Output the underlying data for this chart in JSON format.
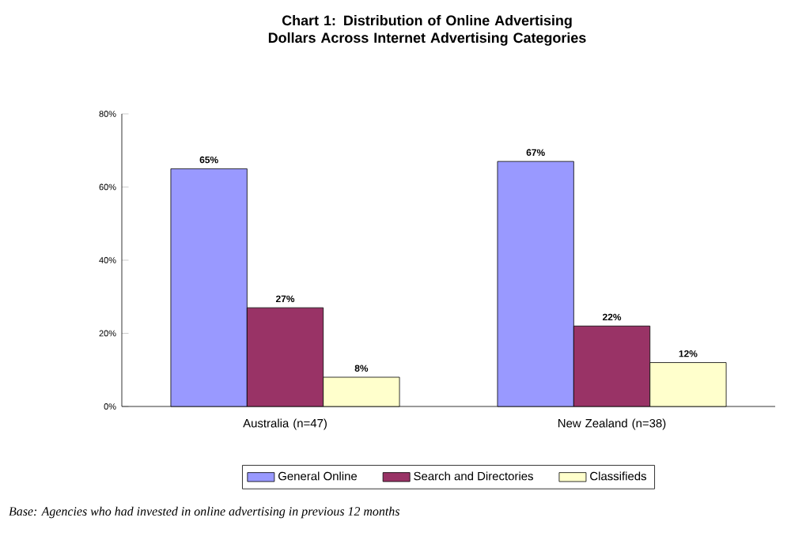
{
  "chart_data": {
    "type": "bar",
    "title": "Chart 1: Distribution of Online Advertising Dollars Across Internet Advertising Categories",
    "categories": [
      "Australia (n=47)",
      "New Zealand (n=38)"
    ],
    "series": [
      {
        "name": "General Online",
        "color": "#9999ff",
        "values": [
          65,
          67
        ],
        "value_labels": [
          "65%",
          "67%"
        ]
      },
      {
        "name": "Search and Directories",
        "color": "#993366",
        "values": [
          27,
          22
        ],
        "value_labels": [
          "27%",
          "22%"
        ]
      },
      {
        "name": "Classifieds",
        "color": "#ffffcc",
        "values": [
          8,
          12
        ],
        "value_labels": [
          "8%",
          "12%"
        ]
      }
    ],
    "ylim": [
      0,
      80
    ],
    "yticks": [
      {
        "value": 0,
        "label": "0%"
      },
      {
        "value": 20,
        "label": "20%"
      },
      {
        "value": 40,
        "label": "40%"
      },
      {
        "value": 60,
        "label": "60%"
      },
      {
        "value": 80,
        "label": "80%"
      }
    ],
    "legend": "bottom",
    "grid": false,
    "annotations": [
      "Base: Agencies who had invested in online advertising in previous 12 months"
    ]
  }
}
